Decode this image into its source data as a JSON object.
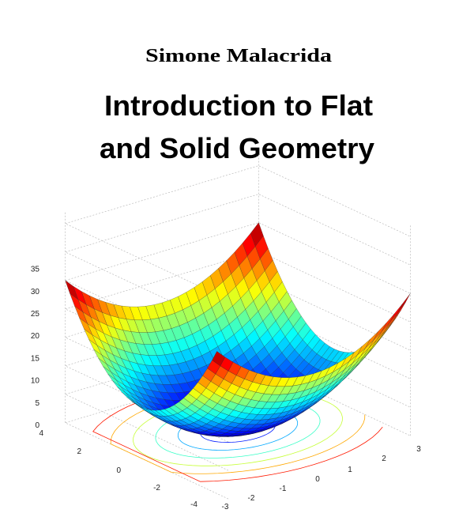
{
  "header": {
    "author": "Simone Malacrida",
    "title_lines": [
      "Introduction to Flat",
      "and Solid Geometry"
    ]
  },
  "figure": {
    "z_tick_labels": [
      "0",
      "5",
      "10",
      "15",
      "20",
      "25",
      "30",
      "35"
    ],
    "y_tick_labels": [
      "4",
      "2",
      "0",
      "-2",
      "-4"
    ],
    "x_tick_labels": [
      "-3",
      "-2",
      "-1",
      "0",
      "1",
      "2",
      "3"
    ]
  }
}
